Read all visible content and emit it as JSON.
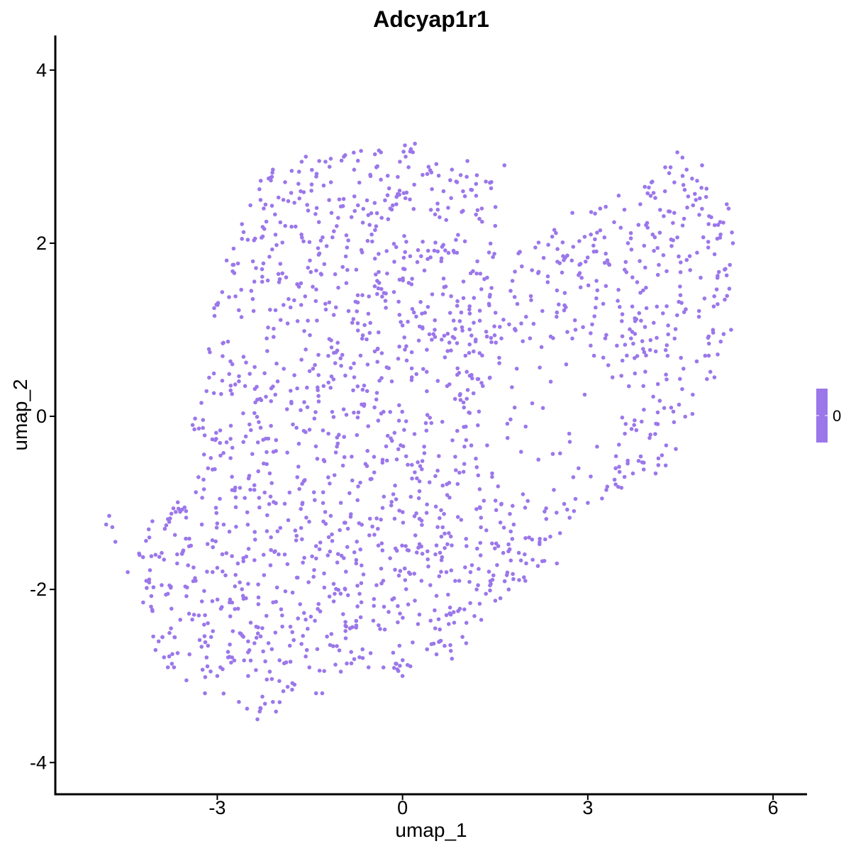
{
  "chart_data": {
    "type": "scatter",
    "title": "Adcyap1r1",
    "xlabel": "umap_1",
    "ylabel": "umap_2",
    "xlim": [
      -5.6,
      6.55
    ],
    "ylim": [
      -4.35,
      4.4
    ],
    "xticks": [
      -3,
      0,
      3,
      6
    ],
    "yticks": [
      -4,
      -2,
      0,
      2,
      4
    ],
    "xtick_labels": [
      "-3",
      "0",
      "3",
      "6"
    ],
    "ytick_labels": [
      "-4",
      "-2",
      "0",
      "2",
      "4"
    ],
    "point_color": "#9B77EA",
    "grid": false,
    "legend": {
      "position": "right",
      "labels": [
        "0"
      ],
      "color": "#9B77EA"
    },
    "approx_point_count": 1800,
    "points": [
      [
        -4.8,
        -1.25
      ],
      [
        -4.75,
        -1.15
      ],
      [
        -4.7,
        -1.28
      ],
      [
        -4.65,
        -1.45
      ],
      [
        -4.45,
        -1.8
      ],
      [
        -4.2,
        -2.15
      ],
      [
        -4.15,
        -1.9
      ],
      [
        -4.1,
        -1.4
      ],
      [
        -4.05,
        -2.25
      ],
      [
        -4.0,
        -1.6
      ],
      [
        -3.95,
        -2.6
      ],
      [
        -3.9,
        -1.95
      ],
      [
        -3.85,
        -1.3
      ],
      [
        -3.8,
        -2.05
      ],
      [
        -3.75,
        -2.45
      ],
      [
        -3.7,
        -2.9
      ],
      [
        -3.65,
        -1.7
      ],
      [
        -3.6,
        -2.35
      ],
      [
        -3.55,
        -1.55
      ],
      [
        -3.5,
        -3.05
      ],
      [
        -3.45,
        -2.75
      ],
      [
        -3.4,
        -0.1
      ],
      [
        -3.35,
        -1.9
      ],
      [
        -3.3,
        -2.3
      ],
      [
        -3.25,
        -1.25
      ],
      [
        -3.2,
        -3.2
      ],
      [
        -3.15,
        -0.6
      ],
      [
        -3.1,
        -2.55
      ],
      [
        -3.05,
        1.25
      ],
      [
        -3.0,
        -1.75
      ],
      [
        -2.95,
        -2.9
      ],
      [
        -2.9,
        0.85
      ],
      [
        -2.85,
        -0.3
      ],
      [
        -2.8,
        -2.15
      ],
      [
        -2.75,
        1.75
      ],
      [
        -2.7,
        -1.05
      ],
      [
        -2.65,
        -3.3
      ],
      [
        -2.6,
        2.05
      ],
      [
        -2.55,
        0.35
      ],
      [
        -2.5,
        -2.6
      ],
      [
        -2.45,
        1.45
      ],
      [
        -2.4,
        -0.85
      ],
      [
        -2.35,
        -3.5
      ],
      [
        -2.3,
        2.5
      ],
      [
        -2.25,
        -1.6
      ],
      [
        -2.2,
        0.9
      ],
      [
        -2.15,
        -2.95
      ],
      [
        -2.1,
        2.85
      ],
      [
        -2.05,
        -0.4
      ],
      [
        -2.0,
        1.55
      ],
      [
        -1.95,
        -2.3
      ],
      [
        -1.9,
        2.2
      ],
      [
        -1.85,
        -1.2
      ],
      [
        -1.8,
        0.15
      ],
      [
        -1.75,
        -3.1
      ],
      [
        -1.7,
        1.1
      ],
      [
        -1.65,
        2.6
      ],
      [
        -1.6,
        -0.75
      ],
      [
        -1.55,
        -2.7
      ],
      [
        -1.5,
        1.8
      ],
      [
        -1.45,
        0.55
      ],
      [
        -1.4,
        -1.5
      ],
      [
        -1.35,
        2.95
      ],
      [
        -1.3,
        -3.2
      ],
      [
        -1.25,
        1.3
      ],
      [
        -1.2,
        -0.2
      ],
      [
        -1.15,
        2.35
      ],
      [
        -1.1,
        -2.05
      ],
      [
        -1.05,
        0.85
      ],
      [
        -1.0,
        -1.0
      ],
      [
        -0.95,
        3.0
      ],
      [
        -0.9,
        1.95
      ],
      [
        -0.85,
        -2.45
      ],
      [
        -0.8,
        0.3
      ],
      [
        -0.75,
        -1.7
      ],
      [
        -0.7,
        2.7
      ],
      [
        -0.65,
        1.4
      ],
      [
        -0.6,
        -0.55
      ],
      [
        -0.55,
        -2.9
      ],
      [
        -0.5,
        2.1
      ],
      [
        -0.45,
        0.75
      ],
      [
        -0.4,
        -1.3
      ],
      [
        -0.35,
        3.05
      ],
      [
        -0.3,
        -2.2
      ],
      [
        -0.25,
        1.65
      ],
      [
        -0.2,
        0.05
      ],
      [
        -0.15,
        -0.9
      ],
      [
        -0.1,
        2.45
      ],
      [
        -0.05,
        -2.65
      ],
      [
        0.0,
        1.05
      ],
      [
        0.05,
        3.0
      ],
      [
        0.1,
        -1.55
      ],
      [
        0.15,
        0.45
      ],
      [
        0.2,
        3.15
      ],
      [
        0.25,
        -2.4
      ],
      [
        0.3,
        1.85
      ],
      [
        0.35,
        -0.35
      ],
      [
        0.4,
        2.8
      ],
      [
        0.45,
        -1.95
      ],
      [
        0.5,
        0.95
      ],
      [
        0.55,
        -2.75
      ],
      [
        0.6,
        2.3
      ],
      [
        0.65,
        -0.8
      ],
      [
        0.7,
        1.5
      ],
      [
        0.75,
        -1.35
      ],
      [
        0.8,
        2.85
      ],
      [
        0.85,
        0.2
      ],
      [
        0.9,
        -2.25
      ],
      [
        0.95,
        1.2
      ],
      [
        1.0,
        -0.55
      ],
      [
        1.05,
        2.95
      ],
      [
        1.1,
        -1.8
      ],
      [
        1.15,
        0.75
      ],
      [
        1.2,
        1.65
      ],
      [
        1.25,
        -1.05
      ],
      [
        1.3,
        0.35
      ],
      [
        1.35,
        -2.05
      ],
      [
        1.4,
        1.3
      ],
      [
        1.45,
        -0.7
      ],
      [
        1.5,
        2.2
      ],
      [
        1.55,
        -1.5
      ],
      [
        1.6,
        0.9
      ],
      [
        1.65,
        2.9
      ],
      [
        1.7,
        -0.25
      ],
      [
        1.75,
        1.45
      ],
      [
        1.8,
        -1.25
      ],
      [
        1.85,
        0.55
      ],
      [
        1.9,
        1.9
      ],
      [
        1.95,
        -0.9
      ],
      [
        2.0,
        1.15
      ],
      [
        2.05,
        -1.4
      ],
      [
        2.1,
        0.15
      ],
      [
        2.15,
        1.95
      ],
      [
        2.2,
        -0.5
      ],
      [
        2.25,
        0.8
      ],
      [
        2.3,
        -1.1
      ],
      [
        2.35,
        1.55
      ],
      [
        2.4,
        0.4
      ],
      [
        2.45,
        -0.85
      ],
      [
        2.5,
        1.2
      ],
      [
        2.55,
        -1.35
      ],
      [
        2.6,
        1.85
      ],
      [
        2.65,
        0.6
      ],
      [
        2.7,
        -0.2
      ],
      [
        2.75,
        2.35
      ],
      [
        2.8,
        1.0
      ],
      [
        2.85,
        -0.6
      ],
      [
        2.9,
        1.6
      ],
      [
        2.95,
        0.25
      ],
      [
        3.0,
        -1.0
      ],
      [
        3.05,
        2.1
      ],
      [
        3.1,
        0.7
      ],
      [
        3.15,
        -0.35
      ],
      [
        3.2,
        2.4
      ],
      [
        3.25,
        1.3
      ],
      [
        3.3,
        -0.85
      ],
      [
        3.35,
        1.75
      ],
      [
        3.4,
        0.45
      ],
      [
        3.45,
        -0.6
      ],
      [
        3.5,
        2.55
      ],
      [
        3.55,
        1.1
      ],
      [
        3.6,
        -0.2
      ],
      [
        3.65,
        2.0
      ],
      [
        3.7,
        0.9
      ],
      [
        3.75,
        -0.1
      ],
      [
        3.8,
        1.55
      ],
      [
        3.85,
        2.45
      ],
      [
        3.9,
        0.35
      ],
      [
        3.95,
        1.25
      ],
      [
        4.0,
        -0.25
      ],
      [
        4.05,
        2.1
      ],
      [
        4.1,
        0.75
      ],
      [
        4.15,
        1.75
      ],
      [
        4.2,
        -0.45
      ],
      [
        4.25,
        2.6
      ],
      [
        4.3,
        1.05
      ],
      [
        4.35,
        0.1
      ],
      [
        4.4,
        2.35
      ],
      [
        4.45,
        3.05
      ],
      [
        4.5,
        1.4
      ],
      [
        4.55,
        0.55
      ],
      [
        4.6,
        2.85
      ],
      [
        4.65,
        1.85
      ],
      [
        4.7,
        0.25
      ],
      [
        4.75,
        2.5
      ],
      [
        4.8,
        1.15
      ],
      [
        4.85,
        2.9
      ],
      [
        4.9,
        0.7
      ],
      [
        4.95,
        1.95
      ],
      [
        5.0,
        2.3
      ],
      [
        5.05,
        0.45
      ],
      [
        5.1,
        1.6
      ],
      [
        5.15,
        2.1
      ],
      [
        5.2,
        0.95
      ],
      [
        5.25,
        2.45
      ],
      [
        5.3,
        1.75
      ],
      [
        5.35,
        2.0
      ],
      [
        5.32,
        1.0
      ],
      [
        5.28,
        2.4
      ],
      [
        -2.1,
        -3.3
      ],
      [
        -3.8,
        -2.9
      ],
      [
        -4.0,
        -2.7
      ],
      [
        -2.5,
        -3.0
      ],
      [
        -1.0,
        -2.95
      ],
      [
        0.0,
        -3.0
      ],
      [
        0.8,
        -2.8
      ],
      [
        1.2,
        -2.0
      ],
      [
        -1.4,
        -3.2
      ],
      [
        -3.0,
        -3.0
      ],
      [
        2.5,
        -1.7
      ]
    ]
  }
}
